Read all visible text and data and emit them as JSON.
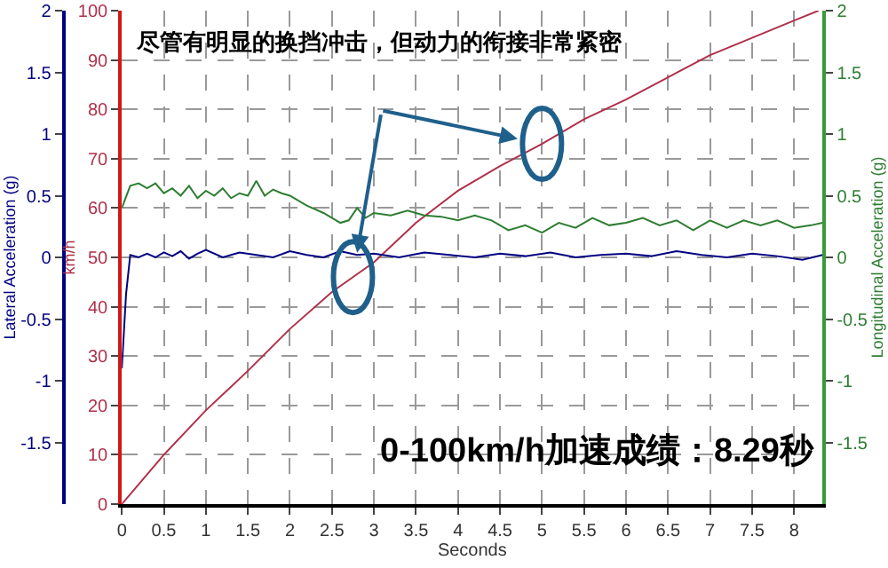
{
  "chart_data": {
    "type": "line",
    "xlabel": "Seconds",
    "ylabel": "km/h",
    "y2label": "Longitudinal Acceleration (g)",
    "y3label": "Lateral Acceleration (g)",
    "annotations": [
      "尽管有明显的换挡冲击，但动力的衔接非常紧密",
      "0-100km/h加速成绩：8.29秒"
    ],
    "xlim": [
      0,
      8.34
    ],
    "xticks": [
      0,
      0.5,
      1,
      1.5,
      2,
      2.5,
      3,
      3.5,
      4,
      4.5,
      5,
      5.5,
      6,
      6.5,
      7,
      7.5,
      8
    ],
    "ylim": [
      0,
      100
    ],
    "yticks": [
      0,
      10,
      20,
      30,
      40,
      50,
      60,
      70,
      80,
      90,
      100
    ],
    "y2lim": [
      -2,
      2
    ],
    "y2ticks": [
      -1.5,
      -1,
      -0.5,
      0,
      0.5,
      1,
      1.5,
      2
    ],
    "y3lim": [
      -2,
      2
    ],
    "y3ticks": [
      -1.5,
      -1,
      -0.5,
      0,
      0.5,
      1,
      1.5,
      2
    ],
    "grid": true,
    "line_style": "solid",
    "series": [
      {
        "axis": "y",
        "color": "#b0304a",
        "x": [
          0,
          0.5,
          1,
          1.5,
          2,
          2.5,
          2.75,
          3,
          3.5,
          4,
          4.5,
          5,
          5.5,
          6,
          6.5,
          7,
          7.5,
          8,
          8.29
        ],
        "values": [
          0,
          10,
          19,
          27,
          35.5,
          43,
          46,
          49,
          57,
          63.5,
          68.5,
          73,
          78,
          82,
          86.5,
          91,
          94.5,
          98,
          100
        ]
      },
      {
        "axis": "y3",
        "color": "#000080",
        "x": [
          0,
          0.05,
          0.1,
          0.2,
          0.3,
          0.4,
          0.5,
          0.6,
          0.7,
          0.8,
          0.9,
          1.0,
          1.2,
          1.4,
          1.6,
          1.8,
          2.0,
          2.2,
          2.4,
          2.6,
          2.8,
          3.0,
          3.3,
          3.6,
          3.9,
          4.2,
          4.5,
          4.8,
          5.1,
          5.4,
          5.7,
          6.0,
          6.3,
          6.6,
          6.9,
          7.2,
          7.5,
          7.8,
          8.1,
          8.34
        ],
        "values": [
          -0.9,
          -0.3,
          0.02,
          0.0,
          0.03,
          0.0,
          0.04,
          0.01,
          0.05,
          -0.01,
          0.03,
          0.06,
          0.0,
          0.04,
          0.02,
          0.0,
          0.05,
          0.02,
          0.0,
          0.05,
          0.02,
          0.03,
          0.0,
          0.04,
          0.02,
          0.0,
          0.03,
          0.01,
          0.04,
          0.0,
          0.02,
          0.03,
          0.01,
          0.05,
          0.02,
          0.0,
          0.03,
          0.01,
          -0.02,
          0.02
        ]
      },
      {
        "axis": "y2",
        "color": "#2e7d32",
        "x": [
          0,
          0.1,
          0.2,
          0.3,
          0.4,
          0.5,
          0.6,
          0.7,
          0.8,
          0.9,
          1.0,
          1.1,
          1.2,
          1.3,
          1.4,
          1.5,
          1.6,
          1.7,
          1.8,
          1.9,
          2.0,
          2.2,
          2.4,
          2.6,
          2.7,
          2.8,
          2.9,
          3.0,
          3.2,
          3.4,
          3.6,
          3.8,
          4.0,
          4.2,
          4.4,
          4.6,
          4.8,
          5.0,
          5.2,
          5.4,
          5.6,
          5.8,
          6.0,
          6.2,
          6.4,
          6.6,
          6.8,
          7.0,
          7.2,
          7.4,
          7.6,
          7.8,
          8.0,
          8.2,
          8.34
        ],
        "values": [
          0.4,
          0.58,
          0.6,
          0.56,
          0.6,
          0.52,
          0.56,
          0.5,
          0.58,
          0.48,
          0.54,
          0.5,
          0.56,
          0.48,
          0.52,
          0.5,
          0.62,
          0.5,
          0.55,
          0.52,
          0.5,
          0.42,
          0.36,
          0.28,
          0.3,
          0.4,
          0.32,
          0.36,
          0.34,
          0.38,
          0.34,
          0.33,
          0.3,
          0.34,
          0.3,
          0.22,
          0.26,
          0.2,
          0.28,
          0.24,
          0.32,
          0.26,
          0.28,
          0.32,
          0.26,
          0.3,
          0.22,
          0.3,
          0.24,
          0.3,
          0.26,
          0.3,
          0.24,
          0.26,
          0.28
        ]
      }
    ]
  }
}
